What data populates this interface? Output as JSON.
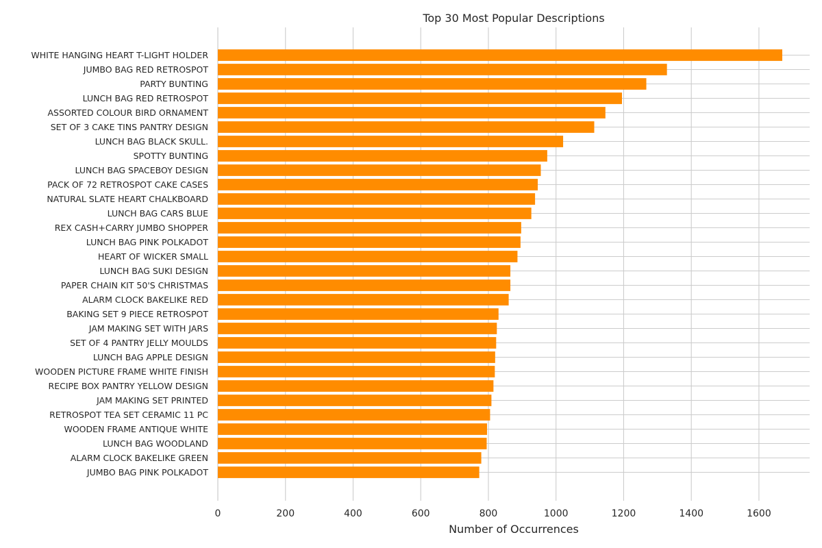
{
  "chart_data": {
    "type": "bar",
    "orientation": "horizontal",
    "title": "Top 30 Most Popular Descriptions",
    "xlabel": "Number of Occurrences",
    "ylabel": "",
    "xlim": [
      0,
      1750
    ],
    "xticks": [
      "0",
      "200",
      "400",
      "600",
      "800",
      "1000",
      "1200",
      "1400",
      "1600"
    ],
    "grid": true,
    "bar_color": "#ff8c00",
    "categories": [
      "WHITE HANGING HEART T-LIGHT HOLDER",
      "JUMBO BAG RED RETROSPOT",
      "PARTY BUNTING",
      "LUNCH BAG RED RETROSPOT",
      "ASSORTED COLOUR BIRD ORNAMENT",
      "SET OF 3 CAKE TINS PANTRY DESIGN",
      "LUNCH BAG  BLACK SKULL.",
      "SPOTTY BUNTING",
      "LUNCH BAG SPACEBOY DESIGN",
      "PACK OF 72 RETROSPOT CAKE CASES",
      "NATURAL SLATE HEART CHALKBOARD",
      "LUNCH BAG CARS BLUE",
      "REX CASH+CARRY JUMBO SHOPPER",
      "LUNCH BAG PINK POLKADOT",
      "HEART OF WICKER SMALL",
      "LUNCH BAG SUKI DESIGN",
      "PAPER CHAIN KIT 50'S CHRISTMAS",
      "ALARM CLOCK BAKELIKE RED",
      "BAKING SET 9 PIECE RETROSPOT",
      "JAM MAKING SET WITH JARS",
      "SET OF 4 PANTRY JELLY MOULDS",
      "LUNCH BAG APPLE DESIGN",
      "WOODEN PICTURE FRAME WHITE FINISH",
      "RECIPE BOX PANTRY YELLOW DESIGN",
      "JAM MAKING SET PRINTED",
      "RETROSPOT TEA SET CERAMIC 11 PC",
      "WOODEN FRAME ANTIQUE WHITE",
      "LUNCH BAG WOODLAND",
      "ALARM CLOCK BAKELIKE GREEN",
      "JUMBO BAG PINK POLKADOT"
    ],
    "values": [
      1669,
      1328,
      1267,
      1195,
      1146,
      1113,
      1021,
      974,
      955,
      946,
      938,
      927,
      897,
      895,
      886,
      865,
      865,
      860,
      830,
      825,
      823,
      820,
      819,
      815,
      809,
      805,
      796,
      795,
      779,
      773
    ]
  }
}
